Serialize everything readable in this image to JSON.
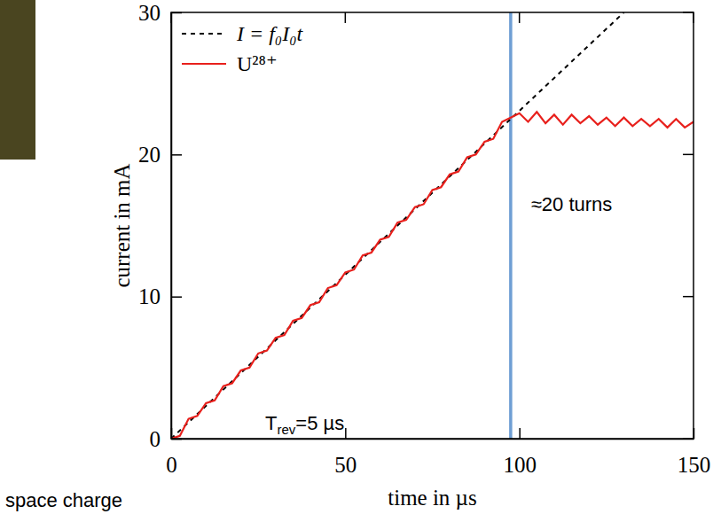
{
  "chart_data": {
    "type": "line",
    "xlabel": "time in µs",
    "ylabel": "current in mA",
    "xlim": [
      0,
      150
    ],
    "ylim": [
      0,
      30
    ],
    "xticks": [
      0,
      50,
      100,
      150
    ],
    "yticks": [
      0,
      10,
      20,
      30
    ],
    "legend": "upper left",
    "series": [
      {
        "name": "I = f₀I₀t",
        "color": "#000000",
        "line_style": "dashed",
        "x": [
          0,
          130
        ],
        "values": [
          0,
          30
        ]
      },
      {
        "name": "U²⁸⁺",
        "color": "#e8201c",
        "line_style": "solid",
        "x": [
          0,
          2.5,
          5,
          7.5,
          10,
          12.5,
          15,
          17.5,
          20,
          22.5,
          25,
          27.5,
          30,
          32.5,
          35,
          37.5,
          40,
          42.5,
          45,
          47.5,
          50,
          52.5,
          55,
          57.5,
          60,
          62.5,
          65,
          67.5,
          70,
          72.5,
          75,
          77.5,
          80,
          82.5,
          85,
          87.5,
          90,
          92.5,
          95,
          97.5,
          100,
          102.5,
          105,
          107.5,
          110,
          112.5,
          115,
          117.5,
          120,
          122.5,
          125,
          127.5,
          130,
          132.5,
          135,
          137.5,
          140,
          142.5,
          145,
          147.5,
          150
        ],
        "values": [
          0,
          0.2,
          1.4,
          1.6,
          2.5,
          2.7,
          3.7,
          3.9,
          4.8,
          5.0,
          6.0,
          6.2,
          7.1,
          7.3,
          8.3,
          8.5,
          9.4,
          9.6,
          10.6,
          10.8,
          11.7,
          11.9,
          12.9,
          13.1,
          14.0,
          14.2,
          15.2,
          15.4,
          16.3,
          16.5,
          17.5,
          17.7,
          18.6,
          18.8,
          19.8,
          20.0,
          20.9,
          21.1,
          22.3,
          22.6,
          22.9,
          22.3,
          23.0,
          22.2,
          22.8,
          22.1,
          22.8,
          22.2,
          22.7,
          22.1,
          22.6,
          22.0,
          22.6,
          22.0,
          22.5,
          22.0,
          22.5,
          21.9,
          22.5,
          21.9,
          22.3
        ]
      }
    ],
    "vline": {
      "x": 97.5,
      "color": "#6f9fd4"
    },
    "annotations": [
      {
        "text": "≈20 turns",
        "x": 115,
        "y": 16
      },
      {
        "text": "T",
        "subscript": "rev",
        "text_after": "=5 µs",
        "x": 27,
        "y": 0.6
      },
      {
        "text": "space charge"
      }
    ]
  }
}
